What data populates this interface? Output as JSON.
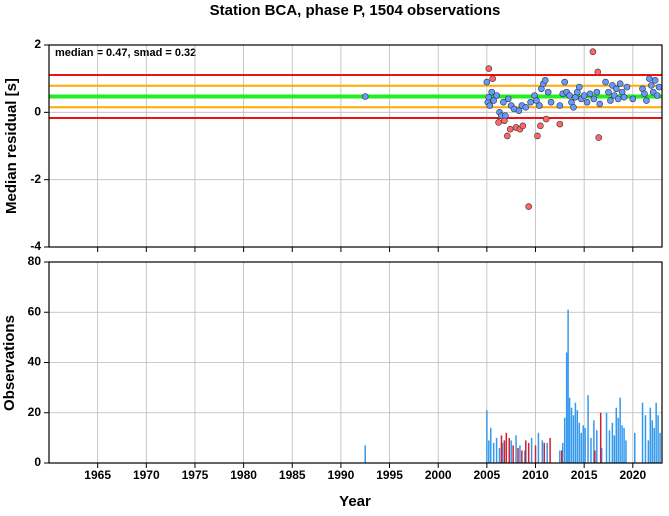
{
  "chart_data": [
    {
      "type": "scatter",
      "title": "Station BCA, phase P, 1504 observations",
      "annotation": "median = 0.47, smad = 0.32",
      "y_label": "Median residual [s]",
      "xlim": [
        1960,
        2023
      ],
      "xticks": [
        1965,
        1970,
        1975,
        1980,
        1985,
        1990,
        1995,
        2000,
        2005,
        2010,
        2015,
        2020
      ],
      "ylim": [
        -4,
        2
      ],
      "yticks": [
        -4,
        -2,
        0,
        2
      ],
      "grid": true,
      "hlines": [
        {
          "value": 1.11,
          "color": "#ee1111"
        },
        {
          "value": 0.79,
          "color": "#ffaa00"
        },
        {
          "value": 0.47,
          "color": "#22ee22"
        },
        {
          "value": 0.15,
          "color": "#ffaa00"
        },
        {
          "value": -0.17,
          "color": "#ee1111"
        }
      ],
      "series": [
        {
          "color": "#6699ff",
          "x": [
            1992.5,
            2005.0,
            2005.1,
            2005.2,
            2005.3,
            2005.5,
            2005.7,
            2006.0,
            2006.3,
            2006.5,
            2006.7,
            2006.9,
            2007.2,
            2007.5,
            2007.8,
            2008.3,
            2008.6,
            2009.0,
            2009.5,
            2009.9,
            2010.1,
            2010.4,
            2010.6,
            2010.8,
            2011.0,
            2011.3,
            2011.6,
            2012.5,
            2012.8,
            2013.0,
            2013.2,
            2013.5,
            2013.7,
            2013.9,
            2014.1,
            2014.3,
            2014.5,
            2014.7,
            2015.0,
            2015.3,
            2015.6,
            2016.0,
            2016.3,
            2016.6,
            2017.2,
            2017.5,
            2017.7,
            2017.9,
            2018.1,
            2018.3,
            2018.5,
            2018.7,
            2018.9,
            2019.1,
            2019.4,
            2020.0,
            2021.0,
            2021.2,
            2021.4,
            2021.7,
            2021.9,
            2022.1,
            2022.3,
            2022.5,
            2022.7
          ],
          "values": [
            0.47,
            0.9,
            0.3,
            0.45,
            0.2,
            0.6,
            0.35,
            0.5,
            0.0,
            -0.1,
            0.3,
            -0.1,
            0.4,
            0.2,
            0.1,
            0.05,
            0.2,
            0.15,
            0.3,
            0.5,
            0.35,
            0.2,
            0.7,
            0.85,
            0.95,
            0.6,
            0.3,
            0.2,
            0.55,
            0.9,
            0.6,
            0.5,
            0.3,
            0.15,
            0.45,
            0.6,
            0.75,
            0.4,
            0.5,
            0.3,
            0.55,
            0.4,
            0.6,
            0.25,
            0.9,
            0.6,
            0.35,
            0.8,
            0.5,
            0.7,
            0.4,
            0.85,
            0.6,
            0.45,
            0.75,
            0.4,
            0.7,
            0.55,
            0.35,
            1.0,
            0.8,
            0.6,
            0.95,
            0.5,
            0.75
          ]
        },
        {
          "color": "#ff6666",
          "x": [
            2005.2,
            2005.6,
            2006.2,
            2006.8,
            2007.1,
            2007.4,
            2008.0,
            2008.4,
            2008.7,
            2009.3,
            2010.2,
            2010.5,
            2011.1,
            2012.5,
            2015.9,
            2016.4,
            2016.5
          ],
          "values": [
            1.3,
            1.0,
            -0.3,
            -0.25,
            -0.7,
            -0.5,
            -0.45,
            -0.5,
            -0.4,
            -2.8,
            -0.7,
            -0.4,
            -0.2,
            -0.35,
            1.8,
            1.2,
            -0.75
          ]
        }
      ]
    },
    {
      "type": "bar",
      "y_label": "Observations",
      "x_label": "Year",
      "xlim": [
        1960,
        2023
      ],
      "xticks": [
        1965,
        1970,
        1975,
        1980,
        1985,
        1990,
        1995,
        2000,
        2005,
        2010,
        2015,
        2020
      ],
      "ylim": [
        0,
        80
      ],
      "yticks": [
        0,
        20,
        40,
        60,
        80
      ],
      "grid": true,
      "series": [
        {
          "color": "#3399ee",
          "x": [
            1992.5,
            2005.0,
            2005.2,
            2005.4,
            2005.7,
            2006.0,
            2006.3,
            2006.6,
            2007.5,
            2008.0,
            2008.4,
            2008.9,
            2009.6,
            2010.3,
            2010.7,
            2011.2,
            2012.5,
            2012.8,
            2013.0,
            2013.2,
            2013.35,
            2013.5,
            2013.7,
            2013.9,
            2014.1,
            2014.3,
            2014.5,
            2014.7,
            2014.9,
            2015.1,
            2015.4,
            2015.7,
            2016.0,
            2016.3,
            2016.8,
            2017.3,
            2017.6,
            2017.9,
            2018.1,
            2018.3,
            2018.5,
            2018.7,
            2018.9,
            2019.1,
            2019.3,
            2020.2,
            2021.0,
            2021.3,
            2021.6,
            2021.8,
            2022.0,
            2022.2,
            2022.4,
            2022.6,
            2022.8
          ],
          "values": [
            7,
            21,
            9,
            14,
            8,
            10,
            6,
            8,
            9,
            11,
            7,
            5,
            10,
            12,
            9,
            8,
            5,
            8,
            18,
            44,
            61,
            26,
            22,
            19,
            24,
            21,
            16,
            12,
            15,
            14,
            27,
            10,
            17,
            13,
            6,
            20,
            13,
            16,
            11,
            22,
            18,
            26,
            15,
            14,
            9,
            12,
            24,
            19,
            9,
            22,
            17,
            14,
            24,
            19,
            12
          ]
        },
        {
          "color": "#cc2233",
          "x": [
            2006.5,
            2006.8,
            2007.0,
            2007.3,
            2007.7,
            2008.2,
            2008.6,
            2009.0,
            2009.3,
            2010.0,
            2010.9,
            2011.5,
            2012.7,
            2016.1,
            2016.7
          ],
          "values": [
            11,
            9,
            12,
            10,
            7,
            6,
            5,
            9,
            8,
            7,
            8,
            10,
            5,
            5,
            20
          ]
        }
      ]
    }
  ]
}
